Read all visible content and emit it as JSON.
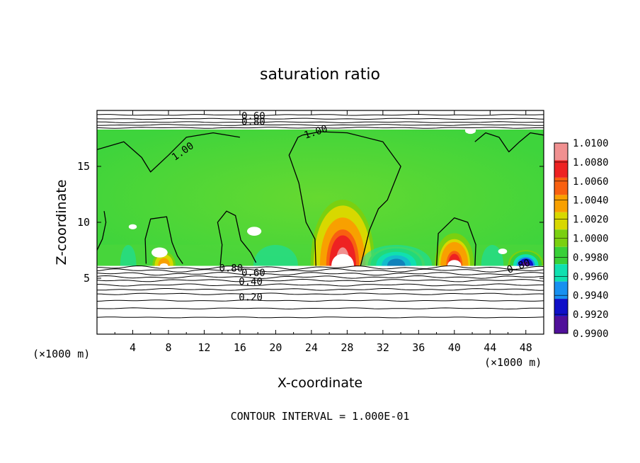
{
  "chart_data": {
    "type": "heatmap",
    "title": "saturation ratio",
    "xlabel": "X-coordinate",
    "ylabel": "Z-coordinate",
    "x_unit": "(×1000 m)",
    "z_unit": "(×1000 m)",
    "xlim": [
      0,
      50
    ],
    "ylim": [
      0,
      20
    ],
    "x_ticks": [
      4,
      8,
      12,
      16,
      20,
      24,
      28,
      32,
      36,
      40,
      44,
      48
    ],
    "y_ticks": [
      5,
      10,
      15
    ],
    "footer": "CONTOUR INTERVAL = 1.000E-01",
    "colorbar": {
      "levels": [
        "1.0100",
        "1.0080",
        "1.0060",
        "1.0040",
        "1.0020",
        "1.0000",
        "0.9980",
        "0.9960",
        "0.9940",
        "0.9920",
        "0.9900"
      ],
      "colors": [
        "#f09090",
        "#ee2222",
        "#f86010",
        "#f8a000",
        "#d8d800",
        "#7ad010",
        "#38d038",
        "#10e0b0",
        "#1890f0",
        "#1010c8",
        "#50109a"
      ]
    },
    "contour_labels": [
      {
        "text": "1.00",
        "x": 9.8,
        "z": 16.1,
        "angle": -35
      },
      {
        "text": "1.00",
        "x": 24.6,
        "z": 17.8,
        "angle": -18
      },
      {
        "text": "0.80",
        "x": 17.5,
        "z": 18.7,
        "angle": 0
      },
      {
        "text": "0.60",
        "x": 17.5,
        "z": 19.2,
        "angle": 0
      },
      {
        "text": "0.80",
        "x": 15.0,
        "z": 5.6,
        "angle": 0
      },
      {
        "text": "0.60",
        "x": 17.5,
        "z": 5.2,
        "angle": 0
      },
      {
        "text": "0.40",
        "x": 17.2,
        "z": 4.4,
        "angle": 0
      },
      {
        "text": "0.20",
        "x": 17.2,
        "z": 3.0,
        "angle": 0
      },
      {
        "text": "0.80",
        "x": 47.3,
        "z": 5.8,
        "angle": -20
      }
    ],
    "features": [
      {
        "kind": "plume",
        "x_center": 27.5,
        "x_half_width": 3.6,
        "z_top": 14.0,
        "max_value": 1.01
      },
      {
        "kind": "plume",
        "x_center": 40.0,
        "x_half_width": 2.2,
        "z_top": 10.0,
        "max_value": 1.008
      },
      {
        "kind": "plume",
        "x_center": 7.5,
        "x_half_width": 1.3,
        "z_top": 7.8,
        "max_value": 1.005
      },
      {
        "kind": "trough",
        "x_center": 33.5,
        "x_half_width": 3.2,
        "z_top": 8.4,
        "min_value": 0.9915
      },
      {
        "kind": "trough",
        "x_center": 48.0,
        "x_half_width": 2.0,
        "z_top": 8.0,
        "min_value": 0.9905
      }
    ]
  }
}
